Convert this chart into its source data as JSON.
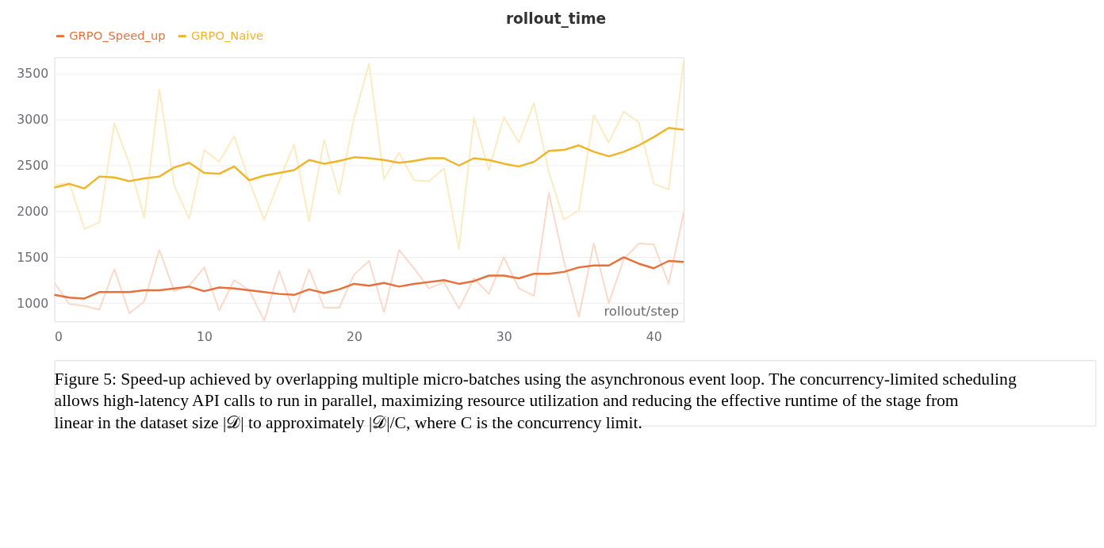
{
  "chart_data": {
    "type": "line",
    "title": "rollout_time",
    "xlabel": "rollout/step",
    "x": [
      0,
      1,
      2,
      3,
      4,
      5,
      6,
      7,
      8,
      9,
      10,
      11,
      12,
      13,
      14,
      15,
      16,
      17,
      18,
      19,
      20,
      21,
      22,
      23,
      24,
      25,
      26,
      27,
      28,
      29,
      30,
      31,
      32,
      33,
      34,
      35,
      36,
      37,
      38,
      39,
      40,
      41,
      42
    ],
    "series": [
      {
        "color": "#fdebc0",
        "values": [
          2290,
          2310,
          1810,
          1880,
          2960,
          2520,
          1930,
          3330,
          2280,
          1920,
          2670,
          2540,
          2820,
          2330,
          1910,
          2330,
          2730,
          1890,
          2780,
          2190,
          3020,
          3610,
          2350,
          2640,
          2340,
          2330,
          2470,
          1590,
          3020,
          2450,
          3030,
          2750,
          3180,
          2430,
          1910,
          2010,
          3050,
          2750,
          3090,
          2970,
          2300,
          2240,
          3650
        ]
      },
      {
        "color": "#fbd8c8",
        "values": [
          1220,
          990,
          970,
          930,
          1370,
          890,
          1020,
          1580,
          1130,
          1190,
          1390,
          920,
          1250,
          1140,
          810,
          1350,
          900,
          1370,
          950,
          950,
          1310,
          1460,
          900,
          1580,
          1380,
          1160,
          1230,
          940,
          1270,
          1100,
          1500,
          1160,
          1080,
          2200,
          1460,
          850,
          1650,
          1000,
          1480,
          1650,
          1640,
          1210,
          1990
        ]
      },
      {
        "name": "GRPO_Speed_up",
        "color": "#e8703a",
        "values": [
          1090,
          1060,
          1050,
          1120,
          1120,
          1120,
          1140,
          1140,
          1160,
          1180,
          1130,
          1170,
          1160,
          1140,
          1120,
          1100,
          1090,
          1150,
          1110,
          1150,
          1210,
          1190,
          1220,
          1180,
          1210,
          1230,
          1250,
          1210,
          1240,
          1300,
          1300,
          1270,
          1320,
          1320,
          1340,
          1390,
          1410,
          1410,
          1500,
          1430,
          1380,
          1460,
          1450
        ]
      },
      {
        "name": "GRPO_Naive",
        "color": "#f0b429",
        "values": [
          2260,
          2300,
          2250,
          2380,
          2370,
          2330,
          2360,
          2380,
          2480,
          2530,
          2420,
          2410,
          2490,
          2340,
          2390,
          2420,
          2450,
          2560,
          2520,
          2550,
          2590,
          2580,
          2560,
          2530,
          2550,
          2580,
          2580,
          2500,
          2580,
          2560,
          2520,
          2490,
          2540,
          2660,
          2670,
          2720,
          2650,
          2600,
          2650,
          2720,
          2810,
          2910,
          2890
        ]
      }
    ],
    "xlim": [
      0,
      42
    ],
    "xticks": [
      0,
      10,
      20,
      30,
      40
    ],
    "ylim": [
      800,
      3680
    ],
    "yticks": [
      1000,
      1500,
      2000,
      2500,
      3000,
      3500
    ],
    "grid": "y",
    "legend": "top",
    "annotations": [
      "Figure 5: Speed-up achieved by overlapping multiple micro-batches using the asynchronous event loop. The concurrency-limited scheduling allows high-latency API calls to run in parallel, maximizing resource utilization and reducing the effective runtime of the stage from linear in the dataset size |𝒟| to approximately |𝒟|/C, where C is the concurrency limit."
    ]
  }
}
